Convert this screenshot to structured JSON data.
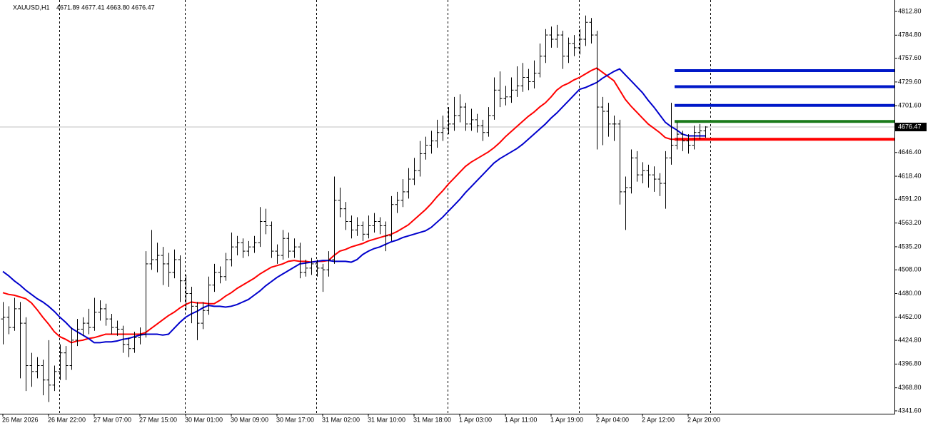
{
  "chart_data": {
    "type": "ohlc",
    "symbol": "XAUUSD,H1",
    "header_values": "4671.89 4677.41 4663.80 4676.47",
    "bar_color": "#000000",
    "price_line_color": "#c0c0c0",
    "categories": [
      "26 Mar 2026",
      null,
      null,
      null,
      null,
      null,
      null,
      null,
      "26 Mar 22:00",
      null,
      null,
      null,
      null,
      null,
      null,
      null,
      "27 Mar 07:00",
      null,
      null,
      null,
      null,
      null,
      null,
      null,
      "27 Mar 15:00",
      null,
      null,
      null,
      null,
      null,
      null,
      null,
      "30 Mar 01:00",
      null,
      null,
      null,
      null,
      null,
      null,
      null,
      "30 Mar 09:00",
      null,
      null,
      null,
      null,
      null,
      null,
      null,
      "30 Mar 17:00",
      null,
      null,
      null,
      null,
      null,
      null,
      null,
      "31 Mar 02:00",
      null,
      null,
      null,
      null,
      null,
      null,
      null,
      "31 Mar 10:00",
      null,
      null,
      null,
      null,
      null,
      null,
      null,
      "31 Mar 18:00",
      null,
      null,
      null,
      null,
      null,
      null,
      null,
      "1 Apr 03:00",
      null,
      null,
      null,
      null,
      null,
      null,
      null,
      "1 Apr 11:00",
      null,
      null,
      null,
      null,
      null,
      null,
      null,
      "1 Apr 19:00",
      null,
      null,
      null,
      null,
      null,
      null,
      null,
      "2 Apr 04:00",
      null,
      null,
      null,
      null,
      null,
      null,
      null,
      "2 Apr 12:00",
      null,
      null,
      null,
      null,
      null,
      null,
      null,
      "2 Apr 20:00",
      null,
      null,
      null
    ],
    "open": [
      4450,
      4452,
      4440,
      4462,
      4445,
      4395,
      4388,
      4395,
      4378,
      4372,
      4388,
      4410,
      4395,
      4425,
      4438,
      4445,
      4440,
      4458,
      4462,
      4450,
      4440,
      4438,
      4420,
      4415,
      4428,
      4432,
      4515,
      4520,
      4525,
      4515,
      4505,
      4520,
      4495,
      4480,
      4465,
      4445,
      4460,
      4490,
      4505,
      4500,
      4520,
      4535,
      4540,
      4530,
      4535,
      4540,
      4565,
      4560,
      4530,
      4525,
      4545,
      4530,
      4535,
      4505,
      4510,
      4515,
      4510,
      4508,
      4520,
      4590,
      4580,
      4565,
      4555,
      4560,
      4550,
      4560,
      4565,
      4560,
      4548,
      4585,
      4590,
      4600,
      4615,
      4625,
      4645,
      4655,
      4660,
      4670,
      4675,
      4680,
      4690,
      4700,
      4680,
      4685,
      4678,
      4670,
      4690,
      4720,
      4710,
      4712,
      4720,
      4725,
      4735,
      4730,
      4740,
      4760,
      4785,
      4780,
      4785,
      4760,
      4775,
      4770,
      4780,
      4800,
      4785,
      4700,
      4695,
      4680,
      4680,
      4600,
      4605,
      4640,
      4620,
      4625,
      4620,
      4615,
      4610,
      4640,
      4655,
      4668,
      4660,
      4655,
      4670,
      4671.89
    ],
    "high": [
      4470,
      4465,
      4475,
      4470,
      4452,
      4410,
      4405,
      4402,
      4425,
      4395,
      4420,
      4418,
      4440,
      4450,
      4452,
      4462,
      4475,
      4472,
      4468,
      4456,
      4448,
      4442,
      4428,
      4435,
      4440,
      4530,
      4555,
      4540,
      4535,
      4528,
      4532,
      4525,
      4502,
      4488,
      4470,
      4470,
      4500,
      4515,
      4512,
      4528,
      4552,
      4548,
      4545,
      4542,
      4548,
      4582,
      4580,
      4565,
      4538,
      4555,
      4552,
      4545,
      4540,
      4520,
      4522,
      4520,
      4515,
      4530,
      4618,
      4605,
      4588,
      4572,
      4570,
      4565,
      4572,
      4575,
      4570,
      4565,
      4595,
      4600,
      4615,
      4628,
      4640,
      4660,
      4665,
      4672,
      4685,
      4690,
      4700,
      4712,
      4715,
      4705,
      4698,
      4692,
      4685,
      4700,
      4735,
      4742,
      4725,
      4735,
      4748,
      4752,
      4745,
      4755,
      4775,
      4792,
      4795,
      4797,
      4790,
      4782,
      4785,
      4792,
      4808,
      4805,
      4790,
      4712,
      4705,
      4690,
      4685,
      4618,
      4650,
      4648,
      4635,
      4632,
      4630,
      4622,
      4648,
      4705,
      4682,
      4672,
      4668,
      4678,
      4680,
      4677.41
    ],
    "low": [
      4420,
      4432,
      4436,
      4380,
      4365,
      4370,
      4380,
      4360,
      4352,
      4365,
      4378,
      4378,
      4390,
      4418,
      4430,
      4432,
      4436,
      4448,
      4442,
      4432,
      4430,
      4410,
      4405,
      4410,
      4420,
      4428,
      4508,
      4505,
      4490,
      4488,
      4498,
      4470,
      4460,
      4445,
      4425,
      4438,
      4455,
      4482,
      4492,
      4495,
      4512,
      4525,
      4522,
      4524,
      4528,
      4535,
      4550,
      4522,
      4515,
      4520,
      4522,
      4522,
      4498,
      4500,
      4502,
      4500,
      4482,
      4500,
      4515,
      4570,
      4555,
      4545,
      4548,
      4542,
      4545,
      4552,
      4550,
      4530,
      4542,
      4575,
      4582,
      4592,
      4608,
      4618,
      4638,
      4645,
      4652,
      4660,
      4668,
      4672,
      4682,
      4672,
      4672,
      4670,
      4660,
      4665,
      4685,
      4700,
      4702,
      4705,
      4712,
      4718,
      4720,
      4722,
      4735,
      4752,
      4770,
      4770,
      4745,
      4752,
      4760,
      4762,
      4772,
      4775,
      4650,
      4655,
      4665,
      4660,
      4585,
      4555,
      4598,
      4612,
      4610,
      4605,
      4600,
      4595,
      4580,
      4632,
      4650,
      4648,
      4645,
      4650,
      4662,
      4663.8
    ],
    "close": [
      4452,
      4440,
      4462,
      4445,
      4395,
      4388,
      4395,
      4378,
      4372,
      4388,
      4410,
      4395,
      4425,
      4438,
      4445,
      4440,
      4458,
      4462,
      4450,
      4440,
      4438,
      4420,
      4415,
      4428,
      4432,
      4515,
      4520,
      4525,
      4515,
      4505,
      4520,
      4495,
      4480,
      4465,
      4445,
      4460,
      4490,
      4505,
      4500,
      4520,
      4535,
      4540,
      4530,
      4535,
      4540,
      4565,
      4560,
      4530,
      4525,
      4545,
      4530,
      4535,
      4505,
      4510,
      4515,
      4510,
      4508,
      4520,
      4590,
      4580,
      4565,
      4555,
      4560,
      4550,
      4560,
      4565,
      4560,
      4548,
      4585,
      4590,
      4600,
      4615,
      4625,
      4645,
      4655,
      4660,
      4670,
      4675,
      4680,
      4690,
      4700,
      4680,
      4685,
      4678,
      4670,
      4690,
      4720,
      4710,
      4712,
      4720,
      4725,
      4735,
      4730,
      4740,
      4760,
      4785,
      4780,
      4785,
      4760,
      4775,
      4770,
      4780,
      4800,
      4785,
      4700,
      4695,
      4680,
      4680,
      4600,
      4605,
      4640,
      4620,
      4625,
      4620,
      4615,
      4610,
      4640,
      4655,
      4668,
      4660,
      4655,
      4670,
      4671.89,
      4676.47
    ],
    "lines": [
      {
        "color": "#ff0000",
        "values": [
          4481,
          4479,
          4478,
          4476,
          4474,
          4469,
          4461,
          4452,
          4444,
          4435,
          4429,
          4426,
          4422,
          4424,
          4425,
          4427,
          4428,
          4430,
          4432,
          4432,
          4432,
          4432,
          4432,
          4432,
          4432,
          4434,
          4439,
          4444,
          4449,
          4454,
          4458,
          4463,
          4467,
          4470,
          4469,
          4469,
          4468,
          4468,
          4472,
          4477,
          4481,
          4486,
          4490,
          4494,
          4498,
          4503,
          4507,
          4511,
          4513,
          4515,
          4518,
          4519,
          4518,
          4518,
          4517,
          4518,
          4518,
          4519,
          4525,
          4530,
          4532,
          4535,
          4537,
          4539,
          4542,
          4544,
          4546,
          4548,
          4550,
          4553,
          4557,
          4561,
          4567,
          4573,
          4579,
          4586,
          4594,
          4601,
          4609,
          4616,
          4623,
          4630,
          4635,
          4639,
          4643,
          4647,
          4652,
          4658,
          4665,
          4671,
          4677,
          4683,
          4689,
          4694,
          4700,
          4705,
          4712,
          4720,
          4725,
          4728,
          4732,
          4735,
          4739,
          4743,
          4746,
          4741,
          4736,
          4731,
          4720,
          4709,
          4701,
          4694,
          4687,
          4680,
          4675,
          4670,
          4664,
          4662,
          4662,
          4662,
          4662,
          4663,
          4663,
          4663
        ]
      },
      {
        "color": "#0000cc",
        "values": [
          4506,
          4501,
          4495,
          4490,
          4484,
          4479,
          4474,
          4470,
          4465,
          4459,
          4452,
          4446,
          4439,
          4435,
          4431,
          4427,
          4422,
          4422,
          4423,
          4423,
          4424,
          4426,
          4427,
          4429,
          4431,
          4432,
          4432,
          4432,
          4431,
          4432,
          4439,
          4446,
          4452,
          4456,
          4459,
          4463,
          4466,
          4465,
          4465,
          4464,
          4465,
          4467,
          4470,
          4473,
          4478,
          4483,
          4489,
          4494,
          4499,
          4503,
          4507,
          4511,
          4515,
          4516,
          4517,
          4518,
          4519,
          4519,
          4518,
          4518,
          4518,
          4517,
          4520,
          4526,
          4530,
          4533,
          4535,
          4538,
          4541,
          4543,
          4546,
          4548,
          4550,
          4552,
          4554,
          4558,
          4564,
          4570,
          4577,
          4584,
          4591,
          4599,
          4606,
          4613,
          4620,
          4627,
          4634,
          4639,
          4643,
          4647,
          4651,
          4656,
          4662,
          4668,
          4674,
          4680,
          4687,
          4693,
          4700,
          4707,
          4714,
          4721,
          4723,
          4726,
          4729,
          4734,
          4738,
          4742,
          4745,
          4738,
          4731,
          4724,
          4717,
          4708,
          4700,
          4691,
          4682,
          4677,
          4673,
          4668,
          4666,
          4666,
          4666,
          4666
        ]
      }
    ],
    "levels": [
      {
        "value": 4743,
        "color": "#0018c8"
      },
      {
        "value": 4724,
        "color": "#0018c8"
      },
      {
        "value": 4702,
        "color": "#0018c8"
      },
      {
        "value": 4683,
        "color": "#1a7a1a"
      },
      {
        "value": 4662,
        "color": "#ff0000"
      }
    ],
    "ylim": [
      4338.2,
      4826.3
    ],
    "yticks": [
      {
        "value": 4812.8,
        "label": "4812.80"
      },
      {
        "value": 4784.8,
        "label": "4784.80"
      },
      {
        "value": 4757.6,
        "label": "4757.60"
      },
      {
        "value": 4729.6,
        "label": "4729.60"
      },
      {
        "value": 4701.6,
        "label": "4701.60"
      },
      {
        "value": 4646.4,
        "label": "4646.40"
      },
      {
        "value": 4618.4,
        "label": "4618.40"
      },
      {
        "value": 4591.2,
        "label": "4591.20"
      },
      {
        "value": 4563.2,
        "label": "4563.20"
      },
      {
        "value": 4535.2,
        "label": "4535.20"
      },
      {
        "value": 4508,
        "label": "4508.00"
      },
      {
        "value": 4480,
        "label": "4480.00"
      },
      {
        "value": 4452,
        "label": "4452.00"
      },
      {
        "value": 4424.8,
        "label": "4424.80"
      },
      {
        "value": 4396.8,
        "label": "4396.80"
      },
      {
        "value": 4368.8,
        "label": "4368.80"
      },
      {
        "value": 4341.6,
        "label": "4341.60"
      }
    ]
  }
}
